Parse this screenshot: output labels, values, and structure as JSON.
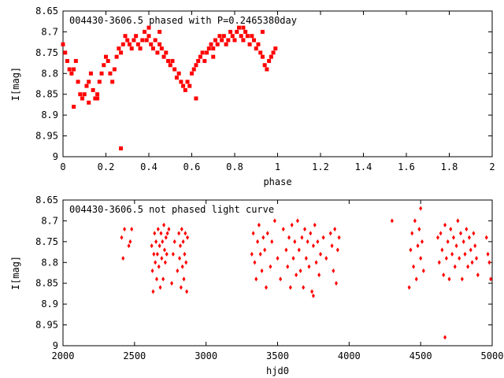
{
  "chart_data": [
    {
      "type": "scatter",
      "title": "004430-3606.5 phased with P=0.2465380day",
      "xlabel": "phase",
      "ylabel": "I[mag]",
      "xlim": [
        0,
        2
      ],
      "ylim": [
        8.65,
        9
      ],
      "y_inverted": true,
      "xticks": [
        "0",
        "0.2",
        "0.4",
        "0.6",
        "0.8",
        "1",
        "1.2",
        "1.4",
        "1.6",
        "1.8",
        "2"
      ],
      "yticks": [
        "8.65",
        "8.7",
        "8.75",
        "8.8",
        "8.85",
        "8.9",
        "8.95",
        "9"
      ],
      "marker_color": "#ff0000",
      "series": [
        {
          "x": [
            0.0,
            0.01,
            0.02,
            0.03,
            0.04,
            0.05,
            0.06,
            0.07,
            0.08,
            0.09,
            0.1,
            0.11,
            0.12,
            0.13,
            0.14,
            0.15,
            0.16,
            0.17,
            0.18,
            0.19,
            0.2,
            0.21,
            0.22,
            0.23,
            0.24,
            0.25,
            0.26,
            0.27,
            0.28,
            0.29,
            0.3,
            0.31,
            0.32,
            0.33,
            0.34,
            0.35,
            0.36,
            0.37,
            0.38,
            0.39,
            0.4,
            0.41,
            0.42,
            0.43,
            0.44,
            0.45,
            0.46,
            0.47,
            0.48,
            0.49,
            0.5,
            0.51,
            0.52,
            0.53,
            0.54,
            0.55,
            0.56,
            0.57,
            0.58,
            0.59,
            0.6,
            0.61,
            0.62,
            0.63,
            0.64,
            0.65,
            0.66,
            0.67,
            0.68,
            0.69,
            0.7,
            0.71,
            0.72,
            0.73,
            0.74,
            0.75,
            0.76,
            0.77,
            0.78,
            0.79,
            0.8,
            0.81,
            0.82,
            0.83,
            0.84,
            0.85,
            0.86,
            0.87,
            0.88,
            0.89,
            0.9,
            0.91,
            0.92,
            0.93,
            0.94,
            0.95,
            0.96,
            0.97,
            0.98,
            0.99,
            0.27,
            0.12,
            0.16,
            0.4,
            0.45,
            0.62,
            0.84,
            0.93,
            0.7,
            0.05
          ],
          "y": [
            8.73,
            8.75,
            8.77,
            8.79,
            8.8,
            8.79,
            8.77,
            8.82,
            8.85,
            8.86,
            8.85,
            8.83,
            8.82,
            8.8,
            8.84,
            8.86,
            8.85,
            8.82,
            8.8,
            8.78,
            8.76,
            8.77,
            8.8,
            8.82,
            8.79,
            8.76,
            8.74,
            8.75,
            8.73,
            8.71,
            8.72,
            8.73,
            8.74,
            8.72,
            8.71,
            8.73,
            8.74,
            8.72,
            8.7,
            8.72,
            8.71,
            8.73,
            8.74,
            8.72,
            8.75,
            8.73,
            8.74,
            8.76,
            8.75,
            8.77,
            8.78,
            8.77,
            8.79,
            8.81,
            8.8,
            8.82,
            8.83,
            8.84,
            8.82,
            8.83,
            8.8,
            8.79,
            8.78,
            8.77,
            8.76,
            8.75,
            8.77,
            8.75,
            8.74,
            8.73,
            8.74,
            8.72,
            8.73,
            8.71,
            8.72,
            8.71,
            8.73,
            8.72,
            8.7,
            8.71,
            8.72,
            8.7,
            8.69,
            8.71,
            8.72,
            8.7,
            8.71,
            8.73,
            8.71,
            8.72,
            8.74,
            8.73,
            8.75,
            8.76,
            8.78,
            8.79,
            8.77,
            8.76,
            8.75,
            8.74,
            8.98,
            8.87,
            8.86,
            8.69,
            8.7,
            8.86,
            8.69,
            8.7,
            8.76,
            8.88
          ]
        }
      ]
    },
    {
      "type": "scatter",
      "title": "004430-3606.5 not phased light curve",
      "xlabel": "hjd0",
      "ylabel": "I[mag]",
      "xlim": [
        2000,
        5000
      ],
      "ylim": [
        8.65,
        9
      ],
      "y_inverted": true,
      "xticks": [
        "2000",
        "2500",
        "3000",
        "3500",
        "4000",
        "4500",
        "5000"
      ],
      "yticks": [
        "8.65",
        "8.7",
        "8.75",
        "8.8",
        "8.85",
        "8.9",
        "8.95",
        "9"
      ],
      "marker_color": "#ff0000",
      "series": [
        {
          "x": [
            2410,
            2420,
            2430,
            2460,
            2470,
            2480,
            2620,
            2625,
            2630,
            2635,
            2640,
            2645,
            2650,
            2655,
            2660,
            2665,
            2670,
            2675,
            2680,
            2685,
            2690,
            2695,
            2700,
            2705,
            2710,
            2715,
            2720,
            2725,
            2730,
            2740,
            2760,
            2770,
            2780,
            2800,
            2810,
            2815,
            2820,
            2825,
            2830,
            2835,
            2840,
            2845,
            2850,
            2855,
            2860,
            2865,
            2870,
            3320,
            3330,
            3340,
            3350,
            3360,
            3370,
            3380,
            3390,
            3400,
            3410,
            3420,
            3430,
            3450,
            3460,
            3480,
            3500,
            3520,
            3540,
            3560,
            3570,
            3580,
            3590,
            3600,
            3610,
            3620,
            3630,
            3640,
            3650,
            3660,
            3670,
            3680,
            3690,
            3700,
            3710,
            3720,
            3730,
            3740,
            3750,
            3760,
            3770,
            3780,
            3790,
            3800,
            3820,
            3840,
            3870,
            3880,
            3890,
            3900,
            3910,
            3920,
            3930,
            4420,
            4430,
            4440,
            4450,
            4460,
            4470,
            4480,
            4490,
            4500,
            4510,
            4520,
            4620,
            4630,
            4640,
            4650,
            4660,
            4670,
            4680,
            4690,
            4700,
            4710,
            4720,
            4730,
            4740,
            4750,
            4760,
            4770,
            4780,
            4790,
            4800,
            4810,
            4820,
            4830,
            4840,
            4850,
            4860,
            4870,
            4880,
            4890,
            4900,
            4960,
            4970,
            4980,
            4990,
            4670,
            3750,
            4500,
            4300
          ],
          "y": [
            8.74,
            8.79,
            8.72,
            8.76,
            8.75,
            8.72,
            8.76,
            8.82,
            8.87,
            8.78,
            8.73,
            8.8,
            8.75,
            8.84,
            8.78,
            8.72,
            8.81,
            8.76,
            8.86,
            8.73,
            8.79,
            8.75,
            8.84,
            8.71,
            8.77,
            8.8,
            8.74,
            8.78,
            8.73,
            8.72,
            8.85,
            8.78,
            8.75,
            8.82,
            8.73,
            8.79,
            8.76,
            8.86,
            8.72,
            8.81,
            8.75,
            8.84,
            8.78,
            8.73,
            8.8,
            8.87,
            8.74,
            8.78,
            8.73,
            8.8,
            8.84,
            8.75,
            8.71,
            8.78,
            8.82,
            8.74,
            8.77,
            8.86,
            8.73,
            8.81,
            8.75,
            8.7,
            8.79,
            8.84,
            8.72,
            8.77,
            8.81,
            8.74,
            8.86,
            8.71,
            8.79,
            8.75,
            8.83,
            8.7,
            8.77,
            8.82,
            8.74,
            8.86,
            8.72,
            8.79,
            8.75,
            8.81,
            8.73,
            8.87,
            8.76,
            8.71,
            8.8,
            8.75,
            8.83,
            8.78,
            8.74,
            8.79,
            8.73,
            8.76,
            8.82,
            8.72,
            8.85,
            8.77,
            8.74,
            8.86,
            8.77,
            8.73,
            8.81,
            8.7,
            8.84,
            8.76,
            8.72,
            8.79,
            8.75,
            8.82,
            8.74,
            8.8,
            8.73,
            8.77,
            8.83,
            8.71,
            8.79,
            8.75,
            8.84,
            8.72,
            8.78,
            8.74,
            8.81,
            8.76,
            8.7,
            8.79,
            8.73,
            8.84,
            8.75,
            8.78,
            8.72,
            8.81,
            8.74,
            8.77,
            8.8,
            8.73,
            8.76,
            8.79,
            8.83,
            8.74,
            8.78,
            8.8,
            8.84,
            8.98,
            8.88,
            8.67,
            8.7
          ]
        }
      ]
    }
  ]
}
